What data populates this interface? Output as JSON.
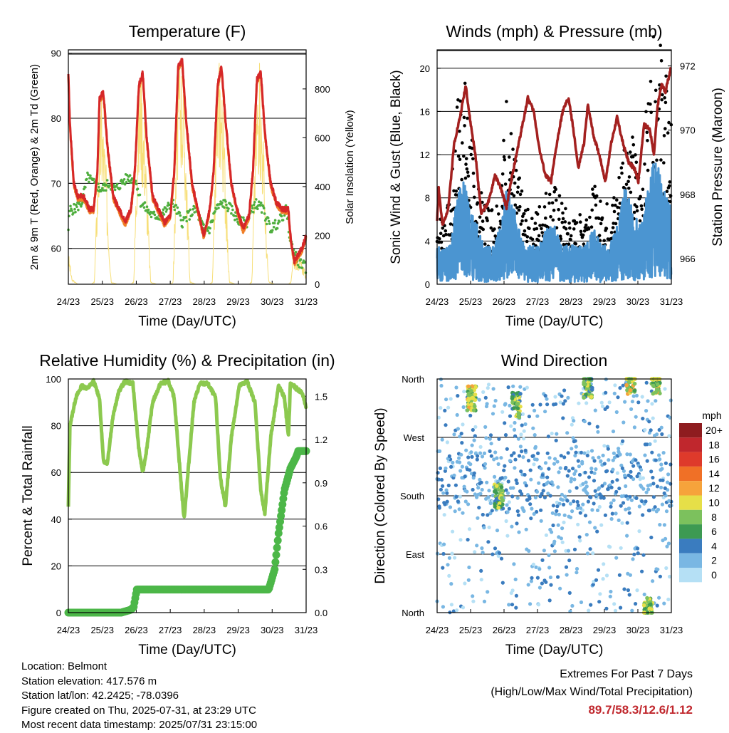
{
  "x_ticks": [
    "24/23",
    "25/23",
    "26/23",
    "27/23",
    "28/23",
    "29/23",
    "30/23",
    "31/23"
  ],
  "footer": {
    "location": "Location: Belmont",
    "elevation": "Station elevation: 417.576 m",
    "latlon": "Station lat/lon: 42.2425; -78.0396",
    "created": "Figure created on Thu, 2025-07-31, at 23:29 UTC",
    "recent": "Most recent data timestamp: 2025/07/31 23:15:00"
  },
  "extremes": {
    "title": "Extremes For Past 7 Days",
    "subtitle": "(High/Low/Max Wind/Total Precipitation)",
    "values": "89.7/58.3/12.6/1.12"
  },
  "colors": {
    "temp2m": "#d62728",
    "temp9m": "#f07e26",
    "dewpoint": "#4fae3e",
    "solar": "#f6dc6a",
    "wind": "#4b95d1",
    "gust": "#000000",
    "pressure": "#a3201f",
    "rh": "#8cc94f",
    "rain": "#4cb748"
  },
  "chart_data": [
    {
      "type": "line",
      "title": "Temperature (F)",
      "xlabel": "Time (Day/UTC)",
      "ylabel": "2m & 9m T (Red, Orange) & 2m Td (Green)",
      "ylabel_right": "Solar Insolation (Yellow)",
      "ylim": [
        54.5,
        90.5
      ],
      "ylim_right": [
        0,
        960
      ],
      "yticks": [
        "60",
        "70",
        "80",
        "90"
      ],
      "yticks_right": [
        "0",
        "200",
        "400",
        "600",
        "800"
      ],
      "grid": true,
      "x_days": [
        24.96,
        31.0
      ],
      "series": [
        {
          "key": "temp2m",
          "axis": "left",
          "x": [
            24.96,
            25.0,
            25.1,
            25.2,
            25.35,
            25.5,
            25.6,
            25.7,
            25.75,
            25.85,
            25.95,
            26.1,
            26.25,
            26.4,
            26.55,
            26.65,
            26.75,
            26.85,
            26.95,
            27.1,
            27.25,
            27.4,
            27.55,
            27.65,
            27.75,
            27.85,
            27.95,
            28.1,
            28.25,
            28.4,
            28.55,
            28.65,
            28.75,
            28.85,
            28.95,
            29.1,
            29.25,
            29.4,
            29.55,
            29.65,
            29.75,
            29.85,
            29.95,
            30.1,
            30.25,
            30.4,
            30.55,
            30.6,
            30.7,
            30.8,
            30.9,
            31.0
          ],
          "y": [
            87,
            79,
            70,
            68,
            68,
            66,
            66,
            72,
            83,
            84,
            76,
            68,
            66,
            64,
            66,
            72,
            85,
            87,
            77,
            68,
            66,
            64,
            65,
            72,
            88,
            89,
            80,
            70,
            66,
            62,
            66,
            72,
            85,
            88,
            80,
            70,
            66,
            63,
            65,
            72,
            86,
            87,
            78,
            70,
            67,
            66,
            66,
            62,
            58,
            59,
            60,
            62
          ]
        },
        {
          "key": "dewpoint",
          "axis": "left",
          "x": [
            24.96,
            25.0,
            25.1,
            25.3,
            25.45,
            25.6,
            25.8,
            26.0,
            26.15,
            26.3,
            26.5,
            26.7,
            26.8,
            26.95,
            27.1,
            27.3,
            27.45,
            27.6,
            27.7,
            27.85,
            28.0,
            28.2,
            28.4,
            28.55,
            28.7,
            28.9,
            29.1,
            29.3,
            29.5,
            29.7,
            29.9,
            30.1,
            30.3,
            30.5,
            30.6,
            30.8,
            31.0
          ],
          "y": [
            63,
            66,
            66,
            67,
            71,
            70,
            69,
            70,
            69,
            70,
            71,
            70,
            67,
            66,
            65,
            65,
            66,
            67,
            66,
            64,
            65,
            66,
            63,
            63,
            66,
            67,
            66,
            64,
            64,
            67,
            66,
            63,
            64,
            66,
            61,
            58,
            57
          ]
        },
        {
          "key": "solar",
          "axis": "right",
          "x": [
            24.96,
            25.05,
            25.2,
            25.35,
            25.45,
            25.55,
            25.62,
            25.66,
            25.72,
            25.8,
            25.9,
            26.0,
            26.05,
            26.2,
            26.35,
            26.45,
            26.55,
            26.62,
            26.66,
            26.72,
            26.8,
            26.9,
            27.0,
            27.05,
            27.2,
            27.35,
            27.45,
            27.55,
            27.62,
            27.66,
            27.72,
            27.8,
            27.9,
            28.0,
            28.05,
            28.2,
            28.35,
            28.45,
            28.55,
            28.62,
            28.66,
            28.72,
            28.8,
            28.9,
            29.0,
            29.05,
            29.2,
            29.35,
            29.45,
            29.55,
            29.62,
            29.66,
            29.72,
            29.8,
            29.9,
            30.0,
            30.05,
            30.2,
            30.35,
            30.45,
            30.55,
            30.62,
            30.66,
            30.75,
            30.85,
            30.95,
            31.0
          ],
          "y": [
            120,
            20,
            0,
            0,
            0,
            0,
            10,
            200,
            500,
            700,
            500,
            150,
            10,
            0,
            0,
            0,
            0,
            10,
            250,
            650,
            800,
            600,
            200,
            10,
            0,
            0,
            0,
            0,
            10,
            250,
            700,
            880,
            700,
            250,
            10,
            0,
            0,
            0,
            0,
            10,
            250,
            700,
            850,
            650,
            200,
            10,
            0,
            0,
            0,
            0,
            10,
            250,
            650,
            830,
            600,
            150,
            10,
            0,
            0,
            0,
            0,
            10,
            120,
            100,
            90,
            60,
            30
          ]
        }
      ]
    },
    {
      "type": "scatter",
      "title": "Winds (mph) & Pressure (mb)",
      "xlabel": "Time (Day/UTC)",
      "ylabel": "Sonic Wind & Gust (Blue, Black)",
      "ylabel_right": "Station Pressure (Maroon)",
      "ylim": [
        0,
        21.7
      ],
      "ylim_right": [
        965.2,
        972.5
      ],
      "yticks": [
        "0",
        "4",
        "8",
        "12",
        "16",
        "20"
      ],
      "yticks_right": [
        "966",
        "968",
        "970",
        "972"
      ],
      "grid": true,
      "series": [
        {
          "key": "pressure",
          "axis": "right",
          "style": "line",
          "x": [
            24.96,
            25.0,
            25.1,
            25.25,
            25.4,
            25.55,
            25.7,
            25.8,
            25.95,
            26.1,
            26.3,
            26.45,
            26.6,
            26.75,
            26.9,
            27.1,
            27.3,
            27.45,
            27.6,
            27.75,
            27.9,
            28.05,
            28.2,
            28.35,
            28.5,
            28.6,
            28.75,
            28.85,
            29.0,
            29.15,
            29.3,
            29.45,
            29.6,
            29.75,
            29.9,
            30.05,
            30.15,
            30.3,
            30.45,
            30.55,
            30.65,
            30.75,
            30.85,
            31.0
          ],
          "y": [
            967.2,
            968.2,
            967.0,
            967.6,
            969.6,
            970.4,
            971.4,
            970.4,
            969.2,
            967.4,
            967.8,
            968.6,
            968.2,
            967.6,
            968.6,
            969.8,
            971.0,
            970.6,
            969.4,
            968.6,
            968.4,
            969.6,
            970.6,
            971.0,
            969.8,
            968.8,
            969.6,
            970.8,
            969.8,
            969.2,
            968.4,
            969.6,
            970.4,
            969.6,
            969.0,
            968.8,
            968.4,
            970.2,
            970.0,
            969.2,
            970.8,
            971.4,
            971.2,
            972.0
          ]
        },
        {
          "key": "gust",
          "axis": "left",
          "style": "dots",
          "seed": 7,
          "x": [
            24.96,
            25.3,
            25.5,
            25.6,
            25.8,
            26.0,
            26.2,
            26.4,
            26.6,
            26.75,
            26.95,
            27.2,
            27.4,
            27.6,
            27.8,
            28.0,
            28.2,
            28.4,
            28.6,
            28.8,
            29.0,
            29.2,
            29.4,
            29.6,
            29.8,
            30.0,
            30.2,
            30.4,
            30.6,
            30.8,
            31.0
          ],
          "y": [
            4,
            5,
            12,
            14,
            10,
            6,
            5,
            5,
            6,
            12,
            8,
            5,
            4,
            5,
            6,
            6,
            5,
            4,
            4,
            5,
            6,
            5,
            5,
            6,
            10,
            9,
            7,
            12,
            16,
            14,
            10
          ]
        },
        {
          "key": "wind",
          "axis": "left",
          "style": "band",
          "seed": 11,
          "x": [
            24.96,
            25.3,
            25.5,
            25.6,
            25.8,
            26.0,
            26.2,
            26.4,
            26.6,
            26.75,
            26.95,
            27.2,
            27.4,
            27.6,
            27.8,
            28.0,
            28.2,
            28.4,
            28.6,
            28.8,
            29.0,
            29.2,
            29.4,
            29.6,
            29.8,
            30.0,
            30.2,
            30.4,
            30.6,
            30.8,
            31.0
          ],
          "y": [
            2,
            2,
            5,
            6,
            4,
            3,
            2,
            2,
            3,
            5,
            4,
            2,
            2,
            2,
            3,
            3,
            2,
            2,
            2,
            2,
            3,
            2,
            2,
            3,
            5,
            4,
            3,
            5,
            7,
            5,
            4
          ]
        }
      ]
    },
    {
      "type": "line",
      "title": "Relative Humidity (%) & Precipitation (in)",
      "xlabel": "Time (Day/UTC)",
      "ylabel": "Percent & Total Rainfall",
      "ylim": [
        0,
        100
      ],
      "ylim_right": [
        0,
        1.62
      ],
      "yticks": [
        "0",
        "20",
        "40",
        "60",
        "80",
        "100"
      ],
      "yticks_right": [
        "0.0",
        "0.3",
        "0.6",
        "0.9",
        "1.2",
        "1.5"
      ],
      "grid": true,
      "series": [
        {
          "key": "rh",
          "axis": "left",
          "x": [
            24.96,
            25.0,
            25.15,
            25.3,
            25.45,
            25.6,
            25.75,
            25.85,
            25.95,
            26.1,
            26.25,
            26.4,
            26.6,
            26.75,
            26.85,
            26.95,
            27.1,
            27.3,
            27.5,
            27.65,
            27.8,
            27.9,
            28.0,
            28.15,
            28.3,
            28.5,
            28.7,
            28.82,
            28.95,
            29.1,
            29.3,
            29.5,
            29.7,
            29.85,
            29.95,
            30.1,
            30.3,
            30.45,
            30.55,
            30.6,
            30.75,
            30.9,
            31.0
          ],
          "y": [
            45,
            80,
            92,
            97,
            96,
            99,
            92,
            65,
            64,
            85,
            95,
            99,
            98,
            70,
            60,
            70,
            90,
            98,
            99,
            92,
            60,
            40,
            60,
            90,
            98,
            98,
            92,
            58,
            45,
            75,
            97,
            99,
            90,
            52,
            42,
            75,
            97,
            92,
            75,
            98,
            96,
            94,
            88
          ]
        },
        {
          "key": "rain",
          "axis": "right",
          "x": [
            24.96,
            26.3,
            26.55,
            26.62,
            26.7,
            26.85,
            27.0,
            28.0,
            29.0,
            29.95,
            30.05,
            30.2,
            30.3,
            30.45,
            30.6,
            30.75,
            30.8,
            31.0
          ],
          "y": [
            0,
            0,
            0.02,
            0.04,
            0.16,
            0.16,
            0.16,
            0.16,
            0.16,
            0.16,
            0.16,
            0.3,
            0.55,
            0.85,
            1.0,
            1.08,
            1.12,
            1.12
          ]
        }
      ]
    },
    {
      "type": "scatter",
      "title": "Wind Direction",
      "xlabel": "Time (Day/UTC)",
      "ylabel": "Direction (Colored By Speed)",
      "yticks": [
        "North",
        "East",
        "South",
        "West",
        "North"
      ],
      "legend": {
        "title": "mph",
        "labels": [
          "20+",
          "18",
          "16",
          "14",
          "12",
          "10",
          "8",
          "6",
          "4",
          "2",
          "0"
        ],
        "colors": [
          "#8e1c1f",
          "#c0272d",
          "#de3a2b",
          "#f07026",
          "#f6a33b",
          "#e6df48",
          "#7cc15d",
          "#3d9a52",
          "#3a7cbf",
          "#79b7e3",
          "#b5e0f5"
        ],
        "placement": "right"
      },
      "clusters": [
        {
          "day": 25.85,
          "dir": 330,
          "speed": 9
        },
        {
          "day": 26.55,
          "dir": 180,
          "speed": 8
        },
        {
          "day": 27.0,
          "dir": 320,
          "speed": 8
        },
        {
          "day": 28.85,
          "dir": 350,
          "speed": 7
        },
        {
          "day": 29.95,
          "dir": 355,
          "speed": 10
        },
        {
          "day": 30.6,
          "dir": 355,
          "speed": 9
        },
        {
          "day": 30.4,
          "dir": 5,
          "speed": 8
        }
      ]
    }
  ]
}
